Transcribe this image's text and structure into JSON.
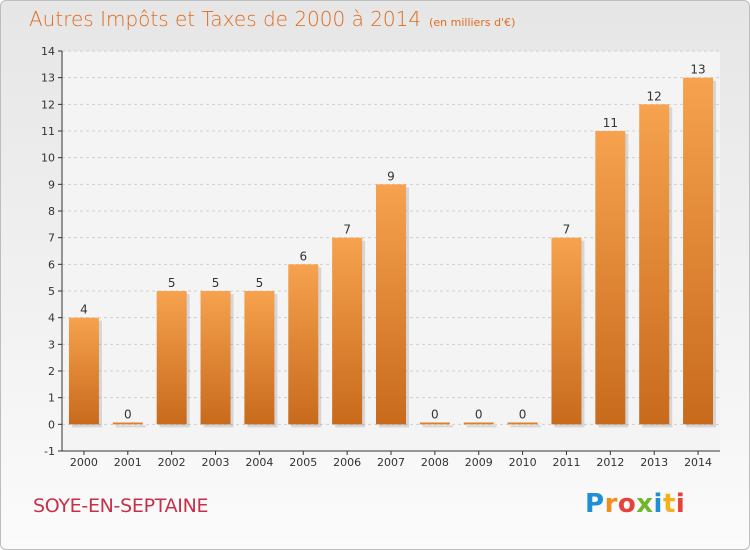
{
  "title": "Autres Impôts et Taxes de 2000 à 2014",
  "subtitle": "(en milliers d'€)",
  "commune": "SOYE-EN-SEPTAINE",
  "logo": {
    "letters": [
      "P",
      "r",
      "o",
      "x",
      "i",
      "t",
      "i"
    ]
  },
  "colors": {
    "title": "#de6b1d",
    "commune": "#c8304a",
    "bar_light": "#f6a24e",
    "bar_dark": "#c86a1c"
  },
  "chart_data": {
    "type": "bar",
    "categories": [
      "2000",
      "2001",
      "2002",
      "2003",
      "2004",
      "2005",
      "2006",
      "2007",
      "2008",
      "2009",
      "2010",
      "2011",
      "2012",
      "2013",
      "2014"
    ],
    "values": [
      4,
      0,
      5,
      5,
      5,
      6,
      7,
      9,
      0,
      0,
      0,
      7,
      11,
      12,
      13
    ],
    "yticks": [
      "-1",
      "0",
      "1",
      "2",
      "3",
      "4",
      "5",
      "6",
      "7",
      "8",
      "9",
      "10",
      "11",
      "12",
      "13",
      "14"
    ],
    "ylim": [
      -1,
      14
    ],
    "grid": true,
    "xlabel": "",
    "ylabel": ""
  }
}
